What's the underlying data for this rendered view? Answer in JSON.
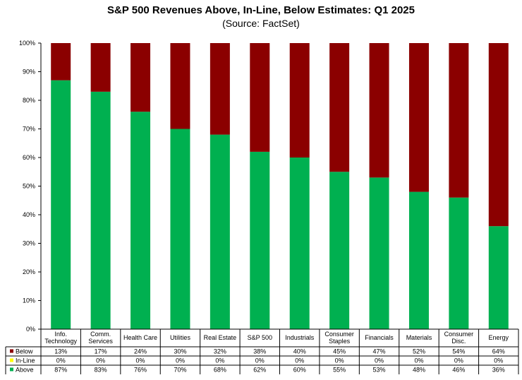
{
  "chart_data": {
    "type": "bar",
    "stacked": true,
    "title": "S&P 500 Revenues Above, In-Line, Below Estimates: Q1 2025",
    "subtitle": "(Source: FactSet)",
    "categories": [
      [
        "Info.",
        "Technology"
      ],
      [
        "Comm.",
        "Services"
      ],
      [
        "Health Care"
      ],
      [
        "Utilities"
      ],
      [
        "Real Estate"
      ],
      [
        "S&P 500"
      ],
      [
        "Industrials"
      ],
      [
        "Consumer",
        "Staples"
      ],
      [
        "Financials"
      ],
      [
        "Materials"
      ],
      [
        "Consumer",
        "Disc."
      ],
      [
        "Energy"
      ]
    ],
    "series": [
      {
        "name": "Below",
        "color": "#8B0000",
        "values": [
          13,
          17,
          24,
          30,
          32,
          38,
          40,
          45,
          47,
          52,
          54,
          64
        ],
        "labels": [
          "13%",
          "17%",
          "24%",
          "30%",
          "32%",
          "38%",
          "40%",
          "45%",
          "47%",
          "52%",
          "54%",
          "64%"
        ]
      },
      {
        "name": "In-Line",
        "color": "#FFFF00",
        "values": [
          0,
          0,
          0,
          0,
          0,
          0,
          0,
          0,
          0,
          0,
          0,
          0
        ],
        "labels": [
          "0%",
          "0%",
          "0%",
          "0%",
          "0%",
          "0%",
          "0%",
          "0%",
          "0%",
          "0%",
          "0%",
          "0%"
        ]
      },
      {
        "name": "Above",
        "color": "#00B050",
        "values": [
          87,
          83,
          76,
          70,
          68,
          62,
          60,
          55,
          53,
          48,
          46,
          36
        ],
        "labels": [
          "87%",
          "83%",
          "76%",
          "70%",
          "68%",
          "62%",
          "60%",
          "55%",
          "53%",
          "48%",
          "46%",
          "36%"
        ]
      }
    ],
    "yticks": [
      "0%",
      "10%",
      "20%",
      "30%",
      "40%",
      "50%",
      "60%",
      "70%",
      "80%",
      "90%",
      "100%"
    ],
    "ylim": [
      0,
      100
    ],
    "grid": false,
    "legend": "data-table-left"
  }
}
